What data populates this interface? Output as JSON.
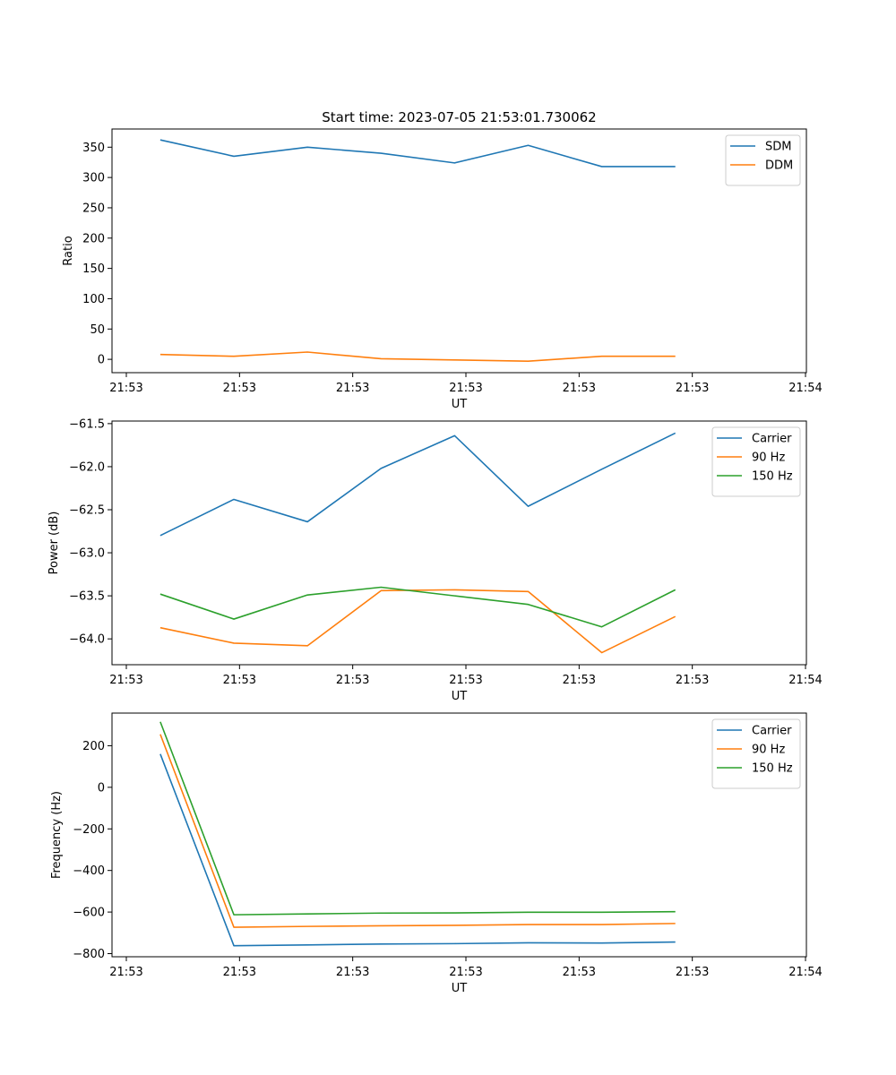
{
  "figure": {
    "title": "Start time: 2023-07-05 21:53:01.730062"
  },
  "chart_data": [
    {
      "type": "line",
      "title": "Start time: 2023-07-05 21:53:01.730062",
      "xlabel": "UT",
      "ylabel": "Ratio",
      "x_tick_labels": [
        "21:53",
        "21:53",
        "21:53",
        "21:53",
        "21:53",
        "21:53",
        "21:54"
      ],
      "x_index": [
        0.5,
        1.15,
        1.8,
        2.45,
        3.1,
        3.75,
        4.4,
        5.05
      ],
      "xlim": [
        0,
        6
      ],
      "yticks": [
        0,
        50,
        100,
        150,
        200,
        250,
        300,
        350
      ],
      "ylim": [
        -22,
        380
      ],
      "legend_position": "top-right",
      "series": [
        {
          "name": "SDM",
          "color": "#1f77b4",
          "values": [
            362,
            335,
            350,
            340,
            324,
            353,
            318,
            318
          ]
        },
        {
          "name": "DDM",
          "color": "#ff7f0e",
          "values": [
            8,
            5,
            12,
            1,
            -1,
            -3,
            5,
            5
          ]
        }
      ]
    },
    {
      "type": "line",
      "title": "",
      "xlabel": "UT",
      "ylabel": "Power (dB)",
      "x_tick_labels": [
        "21:53",
        "21:53",
        "21:53",
        "21:53",
        "21:53",
        "21:53",
        "21:54"
      ],
      "x_index": [
        0.5,
        1.15,
        1.8,
        2.45,
        3.1,
        3.75,
        4.4,
        5.05
      ],
      "xlim": [
        0,
        6
      ],
      "yticks": [
        -64.0,
        -63.5,
        -63.0,
        -62.5,
        -62.0,
        -61.5
      ],
      "ytick_labels": [
        "−64.0",
        "−63.5",
        "−63.0",
        "−62.5",
        "−62.0",
        "−61.5"
      ],
      "ylim": [
        -64.3,
        -61.47
      ],
      "legend_position": "top-right",
      "series": [
        {
          "name": "Carrier",
          "color": "#1f77b4",
          "values": [
            -62.8,
            -62.38,
            -62.64,
            -62.02,
            -61.64,
            -62.46,
            -62.03,
            -61.61
          ]
        },
        {
          "name": "90 Hz",
          "color": "#ff7f0e",
          "values": [
            -63.87,
            -64.05,
            -64.08,
            -63.44,
            -63.43,
            -63.45,
            -64.16,
            -63.74
          ]
        },
        {
          "name": "150 Hz",
          "color": "#2ca02c",
          "values": [
            -63.48,
            -63.77,
            -63.49,
            -63.4,
            -63.5,
            -63.6,
            -63.86,
            -63.43
          ]
        }
      ]
    },
    {
      "type": "line",
      "title": "",
      "xlabel": "UT",
      "ylabel": "Frequency (Hz)",
      "x_tick_labels": [
        "21:53",
        "21:53",
        "21:53",
        "21:53",
        "21:53",
        "21:53",
        "21:54"
      ],
      "x_index": [
        0.5,
        1.15,
        1.8,
        2.45,
        3.1,
        3.75,
        4.4,
        5.05
      ],
      "xlim": [
        0,
        6
      ],
      "yticks": [
        -800,
        -600,
        -400,
        -200,
        0,
        200
      ],
      "ytick_labels": [
        "−800",
        "−600",
        "−400",
        "−200",
        "0",
        "200"
      ],
      "ylim": [
        -815,
        357
      ],
      "legend_position": "top-right",
      "series": [
        {
          "name": "Carrier",
          "color": "#1f77b4",
          "values": [
            160,
            -762,
            -758,
            -754,
            -752,
            -748,
            -749,
            -744
          ]
        },
        {
          "name": "90 Hz",
          "color": "#ff7f0e",
          "values": [
            255,
            -673,
            -669,
            -666,
            -664,
            -660,
            -660,
            -655
          ]
        },
        {
          "name": "150 Hz",
          "color": "#2ca02c",
          "values": [
            315,
            -613,
            -609,
            -605,
            -604,
            -601,
            -601,
            -598
          ]
        }
      ]
    }
  ]
}
